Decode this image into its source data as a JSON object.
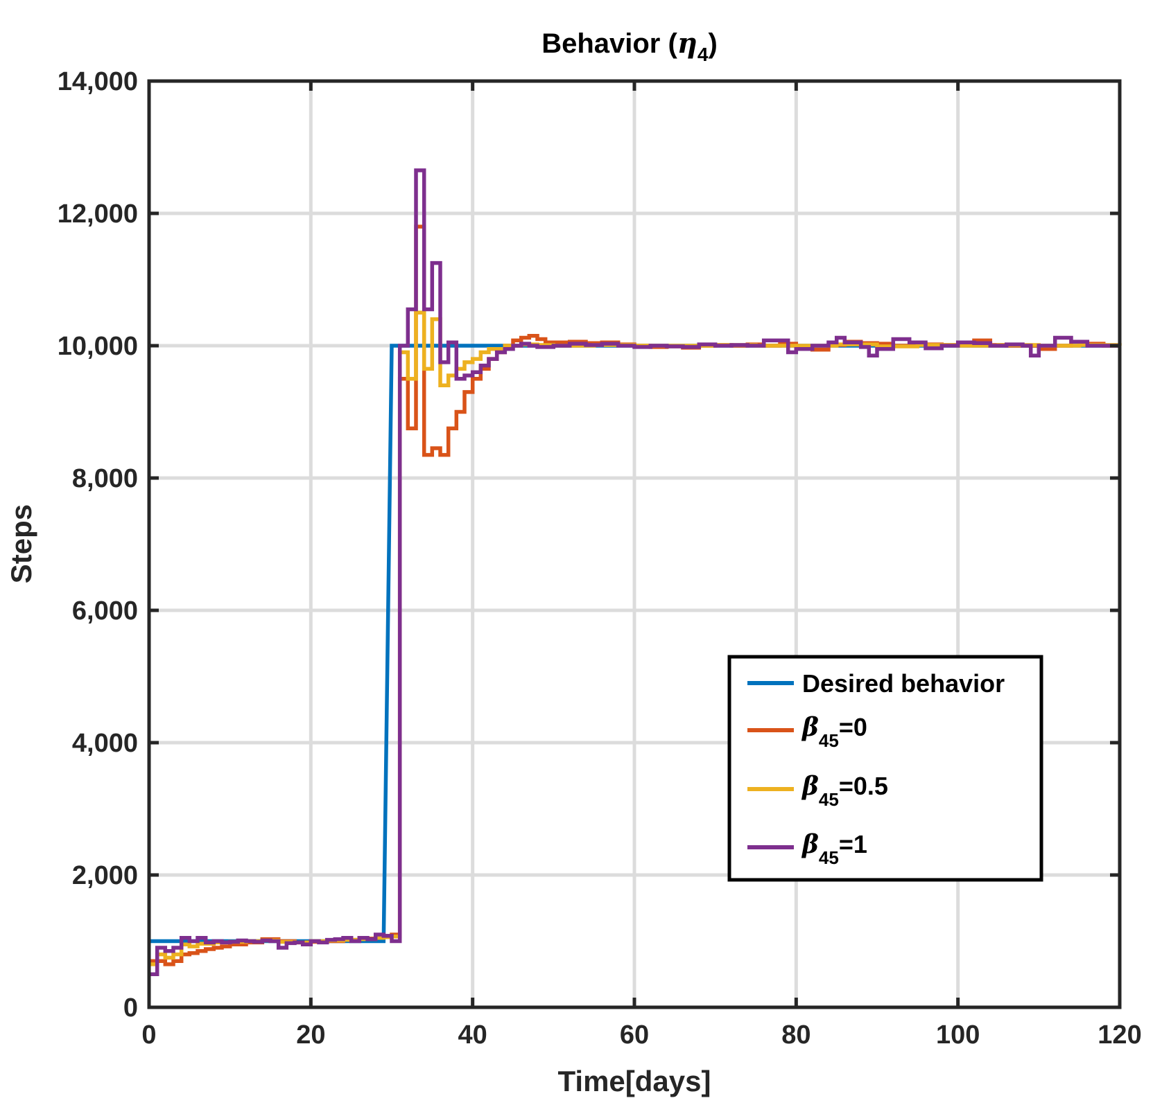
{
  "chart_data": {
    "type": "line",
    "title": "Behavior (η4)",
    "title_main": "Behavior (",
    "title_symbol": "η",
    "title_sub": "4",
    "title_close": ")",
    "xlabel": "Time[days]",
    "ylabel": "Steps",
    "xlim": [
      0,
      120
    ],
    "ylim": [
      0,
      14000
    ],
    "xticks": [
      0,
      20,
      40,
      60,
      80,
      100,
      120
    ],
    "xtick_labels": [
      "0",
      "20",
      "40",
      "60",
      "80",
      "100",
      "120"
    ],
    "yticks": [
      0,
      2000,
      4000,
      6000,
      8000,
      10000,
      12000,
      14000
    ],
    "ytick_labels": [
      "0",
      "2,000",
      "4,000",
      "6,000",
      "8,000",
      "10,000",
      "12,000",
      "14,000"
    ],
    "grid": true,
    "legend_position": "lower-right",
    "series": [
      {
        "name": "Desired behavior",
        "legend_label": "Desired behavior",
        "color": "#0072BD",
        "step": false,
        "x": [
          0,
          29,
          30,
          120
        ],
        "y": [
          1000,
          1000,
          10000,
          10000
        ]
      },
      {
        "name": "β45=0",
        "legend_symbol": "β",
        "legend_sub": "45",
        "legend_value": "=0",
        "color": "#D95319",
        "step": true,
        "x": [
          0,
          1,
          2,
          3,
          4,
          5,
          6,
          7,
          8,
          9,
          10,
          12,
          14,
          16,
          18,
          20,
          22,
          24,
          26,
          28,
          29,
          30,
          31,
          32,
          33,
          34,
          35,
          36,
          37,
          38,
          39,
          40,
          41,
          42,
          43,
          44,
          45,
          46,
          47,
          48,
          49,
          50,
          52,
          54,
          56,
          58,
          60,
          62,
          64,
          66,
          68,
          70,
          72,
          74,
          76,
          78,
          80,
          82,
          84,
          86,
          88,
          90,
          92,
          94,
          96,
          98,
          100,
          102,
          104,
          106,
          108,
          110,
          112,
          114,
          116,
          118,
          120
        ],
        "y": [
          700,
          700,
          650,
          700,
          800,
          820,
          850,
          880,
          900,
          920,
          950,
          980,
          1030,
          1000,
          980,
          990,
          1000,
          1020,
          1040,
          1060,
          1080,
          1100,
          9500,
          8750,
          11800,
          8350,
          8450,
          8350,
          8750,
          9000,
          9300,
          9500,
          9650,
          9800,
          9900,
          10000,
          10080,
          10120,
          10150,
          10100,
          10050,
          10050,
          10060,
          10040,
          10050,
          10020,
          10000,
          9980,
          9990,
          9970,
          10000,
          10010,
          10000,
          10020,
          10000,
          10030,
          9960,
          9940,
          10010,
          10060,
          10040,
          10030,
          10000,
          10030,
          10020,
          10010,
          10010,
          10080,
          10010,
          10000,
          10000,
          9950,
          10000,
          10060,
          10030,
          10000,
          10000
        ]
      },
      {
        "name": "β45=0.5",
        "legend_symbol": "β",
        "legend_sub": "45",
        "legend_value": "=0.5",
        "color": "#EDB120",
        "step": true,
        "x": [
          0,
          1,
          2,
          3,
          4,
          5,
          6,
          8,
          10,
          12,
          14,
          16,
          18,
          20,
          22,
          24,
          26,
          28,
          29,
          30,
          31,
          32,
          33,
          34,
          35,
          36,
          37,
          38,
          39,
          40,
          41,
          42,
          44,
          46,
          48,
          50,
          55,
          60,
          65,
          70,
          75,
          80,
          85,
          90,
          95,
          100,
          105,
          110,
          115,
          120
        ],
        "y": [
          650,
          800,
          750,
          800,
          950,
          920,
          960,
          980,
          990,
          1000,
          1010,
          990,
          980,
          1000,
          1010,
          1020,
          1030,
          1050,
          1060,
          1070,
          9900,
          9500,
          10500,
          9650,
          10400,
          9400,
          9550,
          9650,
          9750,
          9800,
          9900,
          9950,
          10000,
          10020,
          10010,
          10000,
          10010,
          10000,
          10000,
          10010,
          10000,
          10000,
          10020,
          9990,
          10010,
          10000,
          10010,
          10000,
          10010,
          10000
        ]
      },
      {
        "name": "β45=1",
        "legend_symbol": "β",
        "legend_sub": "45",
        "legend_value": "=1",
        "color": "#7E2F8E",
        "step": true,
        "x": [
          0,
          1,
          2,
          3,
          4,
          5,
          6,
          7,
          8,
          9,
          10,
          11,
          12,
          13,
          14,
          15,
          16,
          17,
          18,
          19,
          20,
          21,
          22,
          23,
          24,
          25,
          26,
          27,
          28,
          29,
          30,
          31,
          32,
          33,
          34,
          35,
          36,
          37,
          38,
          39,
          40,
          41,
          42,
          43,
          44,
          45,
          46,
          47,
          48,
          50,
          52,
          54,
          56,
          58,
          60,
          62,
          64,
          66,
          68,
          70,
          72,
          74,
          76,
          78,
          79,
          80,
          82,
          84,
          85,
          86,
          88,
          89,
          90,
          92,
          94,
          96,
          98,
          100,
          102,
          104,
          106,
          108,
          109,
          110,
          112,
          114,
          116,
          118,
          120
        ],
        "y": [
          500,
          900,
          850,
          900,
          1050,
          1000,
          1050,
          980,
          1000,
          980,
          990,
          1010,
          1000,
          990,
          1010,
          1000,
          900,
          970,
          980,
          950,
          1000,
          980,
          1020,
          1030,
          1050,
          1000,
          1050,
          1030,
          1100,
          1080,
          1000,
          10000,
          10550,
          12650,
          10550,
          11250,
          9750,
          10050,
          9500,
          9550,
          9600,
          9700,
          9800,
          9900,
          9950,
          10000,
          10030,
          10000,
          9980,
          10000,
          10030,
          10010,
          10030,
          10000,
          9980,
          10000,
          9990,
          9980,
          10020,
          10000,
          10010,
          10000,
          10080,
          10080,
          9900,
          9950,
          10000,
          10050,
          10120,
          10050,
          9980,
          9850,
          9950,
          10100,
          10050,
          9960,
          10000,
          10050,
          10040,
          10000,
          10020,
          10000,
          9850,
          10000,
          10120,
          10060,
          10000,
          10000,
          10000
        ]
      }
    ]
  }
}
